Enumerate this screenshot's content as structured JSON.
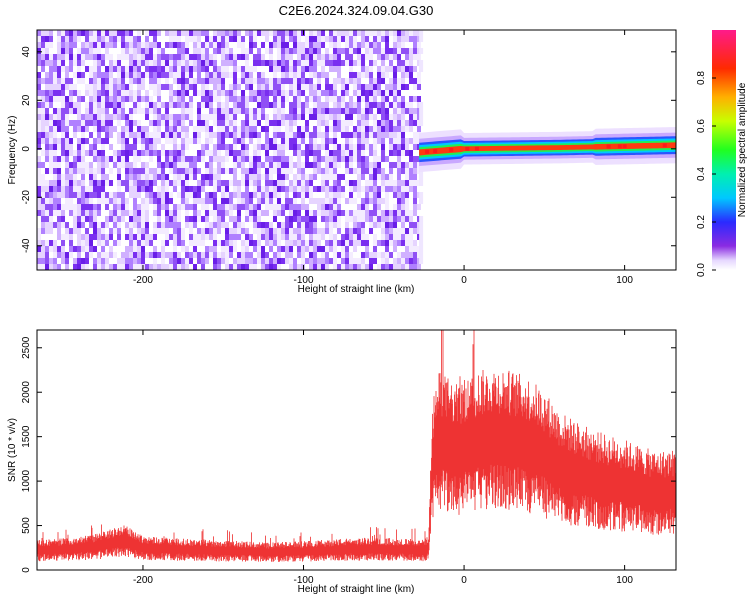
{
  "title": "C2E6.2024.324.09.04.G30",
  "chart_data": [
    {
      "type": "heatmap",
      "xlabel": "Height of straight line (km)",
      "ylabel": "Frequency (Hz)",
      "xlim": [
        -266,
        132
      ],
      "ylim": [
        -50,
        49
      ],
      "xticks": [
        -200,
        -100,
        0,
        100
      ],
      "xtick_labels": [
        "-200",
        "-100",
        "0",
        "100"
      ],
      "yticks": [
        -40,
        -20,
        0,
        20,
        40
      ],
      "ytick_labels": [
        "-40",
        "-20",
        "0",
        "20",
        "40"
      ],
      "noise_region_x": [
        -266,
        -28
      ],
      "signal_band": {
        "x_range": [
          -28,
          132
        ],
        "center_freq_hz": [
          [
            -28,
            -1.5
          ],
          [
            0,
            0
          ],
          [
            60,
            0.5
          ],
          [
            132,
            1.5
          ]
        ],
        "peak_markers_x": [
          -23,
          -18,
          -8,
          2,
          8,
          90,
          97,
          100,
          125
        ]
      },
      "colorbar": {
        "label": "Normalized spectral amplitude",
        "range": [
          0.0,
          1.0
        ],
        "ticks": [
          0.0,
          0.2,
          0.4,
          0.6,
          0.8
        ],
        "tick_labels": [
          "0.0",
          "0.2",
          "0.4",
          "0.6",
          "0.8"
        ]
      },
      "grid": false
    },
    {
      "type": "line",
      "xlabel": "Height of straight line (km)",
      "ylabel": "SNR (10 * v/v)",
      "xlim": [
        -266,
        132
      ],
      "ylim": [
        0,
        2700
      ],
      "xticks": [
        -200,
        -100,
        0,
        100
      ],
      "xtick_labels": [
        "-200",
        "-100",
        "0",
        "100"
      ],
      "yticks": [
        0,
        500,
        1000,
        1500,
        2000,
        2500
      ],
      "ytick_labels": [
        "0",
        "500",
        "1000",
        "1500",
        "2000",
        "2500"
      ],
      "series": [
        {
          "x": [
            -266,
            -250,
            -230,
            -212,
            -200,
            -180,
            -150,
            -120,
            -100,
            -80,
            -60,
            -40,
            -25,
            -22,
            -20,
            -18,
            -15,
            -10,
            -5,
            0,
            5,
            10,
            20,
            30,
            40,
            50,
            60,
            70,
            80,
            90,
            100,
            110,
            120,
            132
          ],
          "y": [
            220,
            230,
            260,
            330,
            250,
            230,
            215,
            200,
            210,
            225,
            235,
            230,
            220,
            250,
            1150,
            1350,
            1450,
            1400,
            1350,
            1380,
            1420,
            1450,
            1480,
            1450,
            1400,
            1300,
            1150,
            1080,
            1020,
            980,
            950,
            900,
            860,
            880
          ],
          "color": "#ee2b2b"
        }
      ],
      "grid": false
    }
  ]
}
